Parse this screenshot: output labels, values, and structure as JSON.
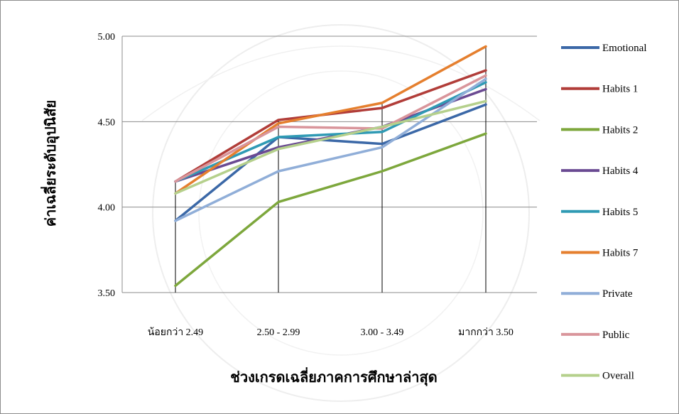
{
  "chart_data": {
    "type": "line",
    "categories": [
      "น้อยกว่า 2.49",
      "2.50 - 2.99",
      "3.00 - 3.49",
      "มากกว่า 3.50"
    ],
    "ylabel": "ค่าเฉลี่ยระดับอุปนิสัย",
    "xlabel": "ช่วงเกรดเฉลี่ยภาคการศึกษาล่าสุด",
    "ylim": [
      3.5,
      5.0
    ],
    "yticks": [
      "3.50",
      "4.00",
      "4.50",
      "5.00"
    ],
    "grid": "horizontal",
    "legend_position": "right",
    "series": [
      {
        "name": "Emotional",
        "color": "#3b68a7",
        "values": [
          3.92,
          4.41,
          4.37,
          4.6
        ]
      },
      {
        "name": "Habits 1",
        "color": "#b13d39",
        "values": [
          4.15,
          4.51,
          4.58,
          4.8
        ]
      },
      {
        "name": "Habits 2",
        "color": "#7da73c",
        "values": [
          3.54,
          4.03,
          4.21,
          4.43
        ]
      },
      {
        "name": "Habits 4",
        "color": "#6a4a92",
        "values": [
          4.15,
          4.35,
          4.47,
          4.69
        ]
      },
      {
        "name": "Habits 5",
        "color": "#2f9ab4",
        "values": [
          4.15,
          4.41,
          4.44,
          4.73
        ]
      },
      {
        "name": "Habits 7",
        "color": "#e57f2e",
        "values": [
          4.08,
          4.49,
          4.61,
          4.94
        ]
      },
      {
        "name": "Private",
        "color": "#90aed8",
        "values": [
          3.92,
          4.21,
          4.35,
          4.75
        ]
      },
      {
        "name": "Public",
        "color": "#d9959b",
        "values": [
          4.15,
          4.47,
          4.46,
          4.77
        ]
      },
      {
        "name": "Overall",
        "color": "#b5d08c",
        "values": [
          4.08,
          4.34,
          4.47,
          4.62
        ]
      }
    ]
  }
}
